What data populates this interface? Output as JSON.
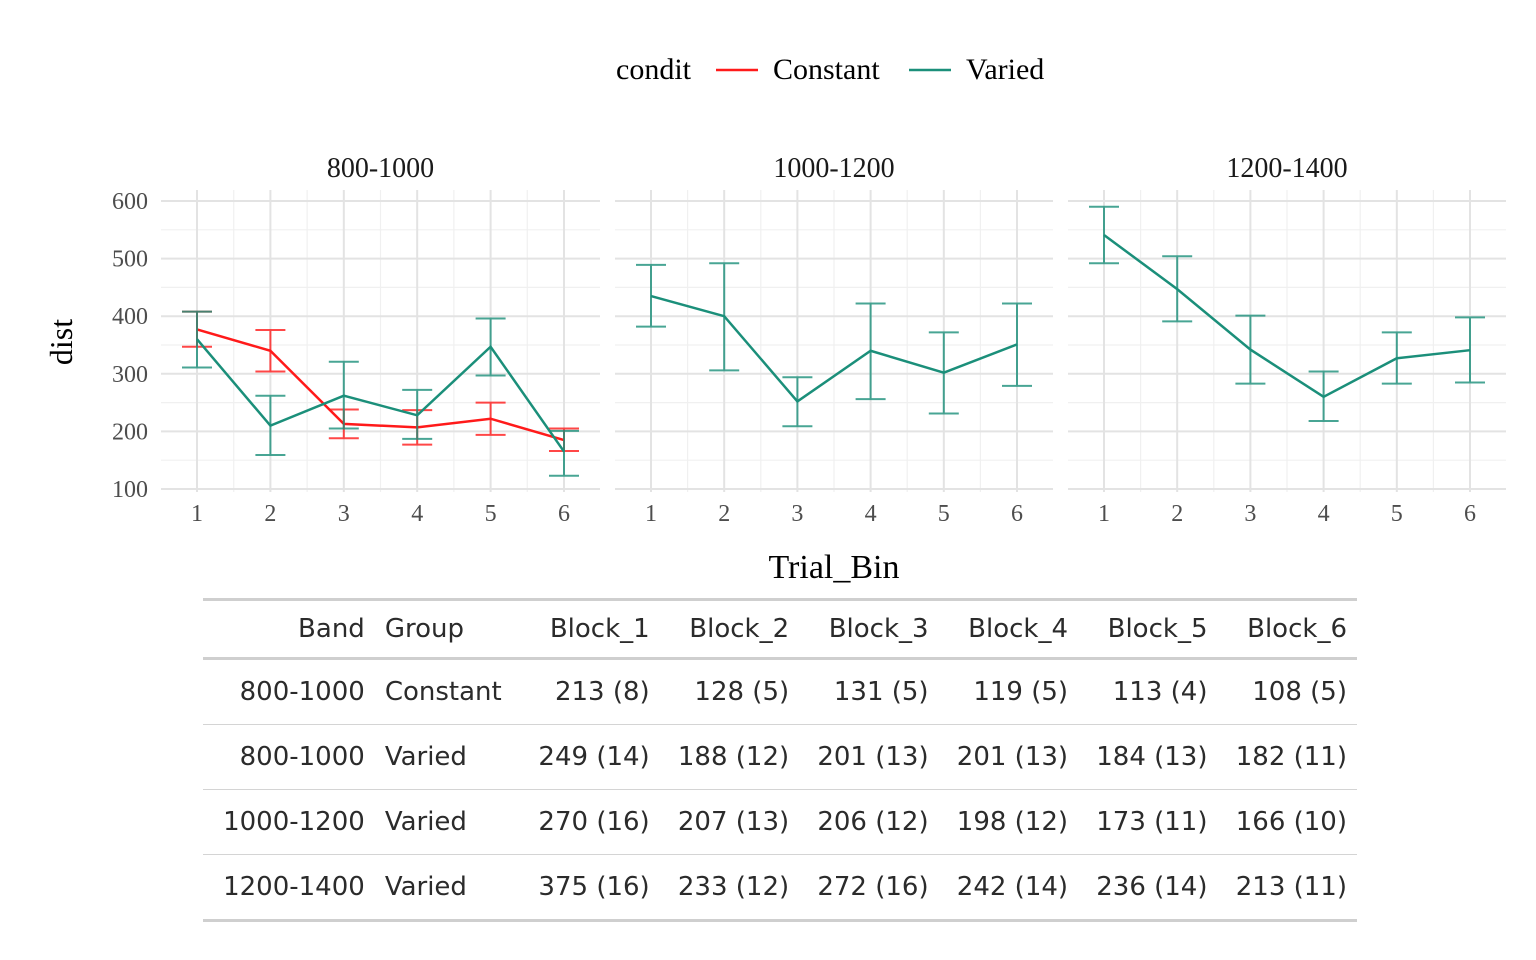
{
  "chart_data": {
    "type": "line",
    "legend": {
      "title": "condit",
      "position": "top",
      "entries": [
        {
          "name": "Constant",
          "color": "#ff1a1a"
        },
        {
          "name": "Varied",
          "color": "#1b8f7a"
        }
      ]
    },
    "xlabel": "Trial_Bin",
    "ylabel": "dist",
    "ylim": [
      100,
      600
    ],
    "yticks": [
      100,
      200,
      300,
      400,
      500,
      600
    ],
    "xticks": [
      1,
      2,
      3,
      4,
      5,
      6
    ],
    "grid": true,
    "facets": [
      {
        "label": "800-1000",
        "series": [
          {
            "name": "Constant",
            "x": [
              1,
              2,
              3,
              4,
              5,
              6
            ],
            "y": [
              377,
              340,
              213,
              207,
              222,
              185
            ],
            "lo": [
              347,
              304,
              188,
              177,
              194,
              166
            ],
            "hi": [
              408,
              376,
              238,
              237,
              250,
              205
            ]
          },
          {
            "name": "Varied",
            "x": [
              1,
              2,
              3,
              4,
              5,
              6
            ],
            "y": [
              360,
              210,
              262,
              228,
              347,
              165
            ],
            "lo": [
              311,
              159,
              205,
              187,
              297,
              123
            ],
            "hi": [
              408,
              262,
              321,
              272,
              396,
              201
            ]
          }
        ]
      },
      {
        "label": "1000-1200",
        "series": [
          {
            "name": "Varied",
            "x": [
              1,
              2,
              3,
              4,
              5,
              6
            ],
            "y": [
              435,
              400,
              252,
              340,
              302,
              351
            ],
            "lo": [
              382,
              306,
              209,
              256,
              231,
              279
            ],
            "hi": [
              489,
              492,
              294,
              422,
              372,
              422
            ]
          }
        ]
      },
      {
        "label": "1200-1400",
        "series": [
          {
            "name": "Varied",
            "x": [
              1,
              2,
              3,
              4,
              5,
              6
            ],
            "y": [
              541,
              447,
              342,
              260,
              327,
              341
            ],
            "lo": [
              492,
              391,
              283,
              218,
              283,
              285
            ],
            "hi": [
              590,
              504,
              401,
              304,
              372,
              398
            ]
          }
        ]
      }
    ]
  },
  "table": {
    "headers": [
      "Band",
      "Group",
      "Block_1",
      "Block_2",
      "Block_3",
      "Block_4",
      "Block_5",
      "Block_6"
    ],
    "rows": [
      [
        "800-1000",
        "Constant",
        "213 (8)",
        "128 (5)",
        "131 (5)",
        "119 (5)",
        "113 (4)",
        "108 (5)"
      ],
      [
        "800-1000",
        "Varied",
        "249 (14)",
        "188 (12)",
        "201 (13)",
        "201 (13)",
        "184 (13)",
        "182 (11)"
      ],
      [
        "1000-1200",
        "Varied",
        "270 (16)",
        "207 (13)",
        "206 (12)",
        "198 (12)",
        "173 (11)",
        "166 (10)"
      ],
      [
        "1200-1400",
        "Varied",
        "375 (16)",
        "233 (12)",
        "272 (16)",
        "242 (14)",
        "236 (14)",
        "213 (11)"
      ]
    ]
  }
}
